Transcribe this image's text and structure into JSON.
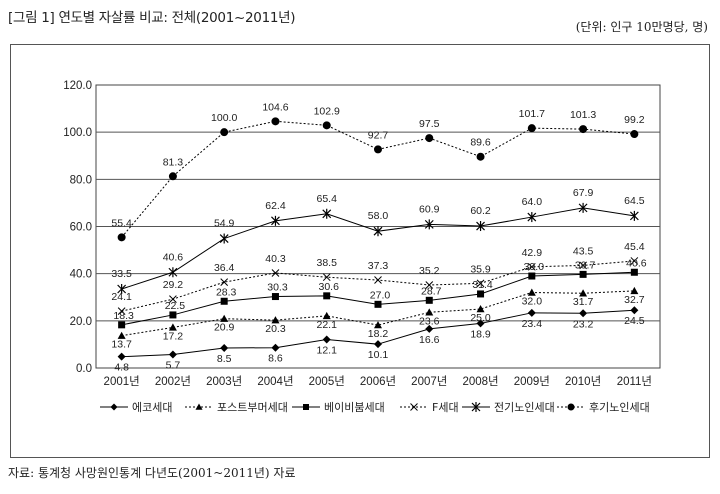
{
  "title": "[그림 1] 연도별 자살률 비교: 전체(2001~2011년)",
  "unit": "(단위: 인구 10만명당, 명)",
  "source": "자료: 통계청 사망원인통계 다년도(2001~2011년) 자료",
  "chart_data": {
    "type": "line",
    "x": [
      "2001년",
      "2002년",
      "2003년",
      "2004년",
      "2005년",
      "2006년",
      "2007년",
      "2008년",
      "2009년",
      "2010년",
      "2011년"
    ],
    "ylim": [
      0,
      120
    ],
    "yticks": [
      "0.0",
      "20.0",
      "40.0",
      "60.0",
      "80.0",
      "100.0",
      "120.0"
    ],
    "grid": true,
    "legend_position": "bottom",
    "series": [
      {
        "name": "에코세대",
        "marker": "diamond",
        "line": "solid",
        "color": "#000000",
        "values": [
          4.8,
          5.7,
          8.5,
          8.6,
          12.1,
          10.1,
          16.6,
          18.9,
          23.4,
          23.2,
          24.5
        ],
        "labels": [
          "4.8",
          "5.7",
          "8.5",
          "8.6",
          "12.1",
          "10.1",
          "16.6",
          "18.9",
          "23.4",
          "23.2",
          "24.5"
        ]
      },
      {
        "name": "포스트부머세대",
        "marker": "triangle",
        "line": "dotted",
        "color": "#000000",
        "values": [
          13.7,
          17.2,
          20.9,
          20.3,
          22.1,
          18.2,
          23.6,
          25.0,
          32.0,
          31.7,
          32.7
        ],
        "labels": [
          "13.7",
          "17.2",
          "20.9",
          "20.3",
          "22.1",
          "18.2",
          "23.6",
          "25.0",
          "32.0",
          "31.7",
          "32.7"
        ]
      },
      {
        "name": "베이비붐세대",
        "marker": "square",
        "line": "solid",
        "color": "#000000",
        "values": [
          18.3,
          22.5,
          28.3,
          30.3,
          30.6,
          27.0,
          28.7,
          31.4,
          39.0,
          39.7,
          40.6
        ],
        "labels": [
          "18.3",
          "22.5",
          "28.3",
          "30.3",
          "30.6",
          "27.0",
          "28.7",
          "31.4",
          "39.0",
          "39.7",
          "40.6"
        ]
      },
      {
        "name": "F세대",
        "marker": "x",
        "line": "dotted",
        "color": "#000000",
        "values": [
          24.1,
          29.2,
          36.4,
          40.3,
          38.5,
          37.3,
          35.2,
          35.9,
          42.9,
          43.5,
          45.4
        ],
        "labels": [
          "24.1",
          "29.2",
          "36.4",
          "40.3",
          "38.5",
          "37.3",
          "35.2",
          "35.9",
          "42.9",
          "43.5",
          "45.4"
        ]
      },
      {
        "name": "전기노인세대",
        "marker": "asterisk",
        "line": "solid",
        "color": "#000000",
        "values": [
          33.5,
          40.6,
          54.9,
          62.4,
          65.4,
          58.0,
          60.9,
          60.2,
          64.0,
          67.9,
          64.5
        ],
        "labels": [
          "33.5",
          "40.6",
          "54.9",
          "62.4",
          "65.4",
          "58.0",
          "60.9",
          "60.2",
          "64.0",
          "67.9",
          "64.5"
        ]
      },
      {
        "name": "후기노인세대",
        "marker": "circle",
        "line": "dotted",
        "color": "#000000",
        "values": [
          55.4,
          81.3,
          100.0,
          104.6,
          102.9,
          92.7,
          97.5,
          89.6,
          101.7,
          101.3,
          99.2
        ],
        "labels": [
          "55.4",
          "81.3",
          "100.0",
          "104.6",
          "102.9",
          "92.7",
          "97.5",
          "89.6",
          "101.7",
          "101.3",
          "99.2"
        ]
      }
    ]
  }
}
